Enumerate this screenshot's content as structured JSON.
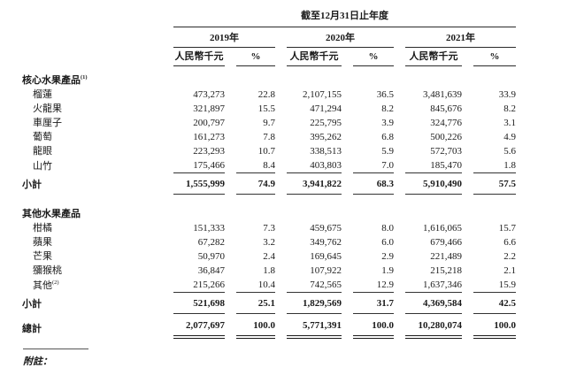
{
  "table": {
    "period_header": "截至12月31日止年度",
    "year_groups": [
      {
        "year": "2019年",
        "amount_header": "人民幣千元",
        "pct_header": "%"
      },
      {
        "year": "2020年",
        "amount_header": "人民幣千元",
        "pct_header": "%"
      },
      {
        "year": "2021年",
        "amount_header": "人民幣千元",
        "pct_header": "%"
      }
    ],
    "sections": [
      {
        "header": "核心水果產品",
        "header_sup": "(1)",
        "rows": [
          {
            "label": "榴蓮",
            "values": [
              "473,273",
              "22.8",
              "2,107,155",
              "36.5",
              "3,481,639",
              "33.9"
            ]
          },
          {
            "label": "火龍果",
            "values": [
              "321,897",
              "15.5",
              "471,294",
              "8.2",
              "845,676",
              "8.2"
            ]
          },
          {
            "label": "車厘子",
            "values": [
              "200,797",
              "9.7",
              "225,795",
              "3.9",
              "324,776",
              "3.1"
            ]
          },
          {
            "label": "葡萄",
            "values": [
              "161,273",
              "7.8",
              "395,262",
              "6.8",
              "500,226",
              "4.9"
            ]
          },
          {
            "label": "龍眼",
            "values": [
              "223,293",
              "10.7",
              "338,513",
              "5.9",
              "572,703",
              "5.6"
            ]
          },
          {
            "label": "山竹",
            "values": [
              "175,466",
              "8.4",
              "403,803",
              "7.0",
              "185,470",
              "1.8"
            ]
          }
        ],
        "subtotal": {
          "label": "小計",
          "values": [
            "1,555,999",
            "74.9",
            "3,941,822",
            "68.3",
            "5,910,490",
            "57.5"
          ]
        }
      },
      {
        "header": "其他水果產品",
        "header_sup": "",
        "rows": [
          {
            "label": "柑橘",
            "values": [
              "151,333",
              "7.3",
              "459,675",
              "8.0",
              "1,616,065",
              "15.7"
            ]
          },
          {
            "label": "蘋果",
            "values": [
              "67,282",
              "3.2",
              "349,762",
              "6.0",
              "679,466",
              "6.6"
            ]
          },
          {
            "label": "芒果",
            "values": [
              "50,970",
              "2.4",
              "169,645",
              "2.9",
              "221,489",
              "2.2"
            ]
          },
          {
            "label": "獼猴桃",
            "values": [
              "36,847",
              "1.8",
              "107,922",
              "1.9",
              "215,218",
              "2.1"
            ]
          },
          {
            "label": "其他",
            "sup": "(2)",
            "values": [
              "215,266",
              "10.4",
              "742,565",
              "12.9",
              "1,637,346",
              "15.9"
            ]
          }
        ],
        "subtotal": {
          "label": "小計",
          "values": [
            "521,698",
            "25.1",
            "1,829,569",
            "31.7",
            "4,369,584",
            "42.5"
          ]
        }
      }
    ],
    "total": {
      "label": "總計",
      "values": [
        "2,077,697",
        "100.0",
        "5,771,391",
        "100.0",
        "10,280,074",
        "100.0"
      ]
    }
  },
  "footer": {
    "note_label": "附註："
  }
}
